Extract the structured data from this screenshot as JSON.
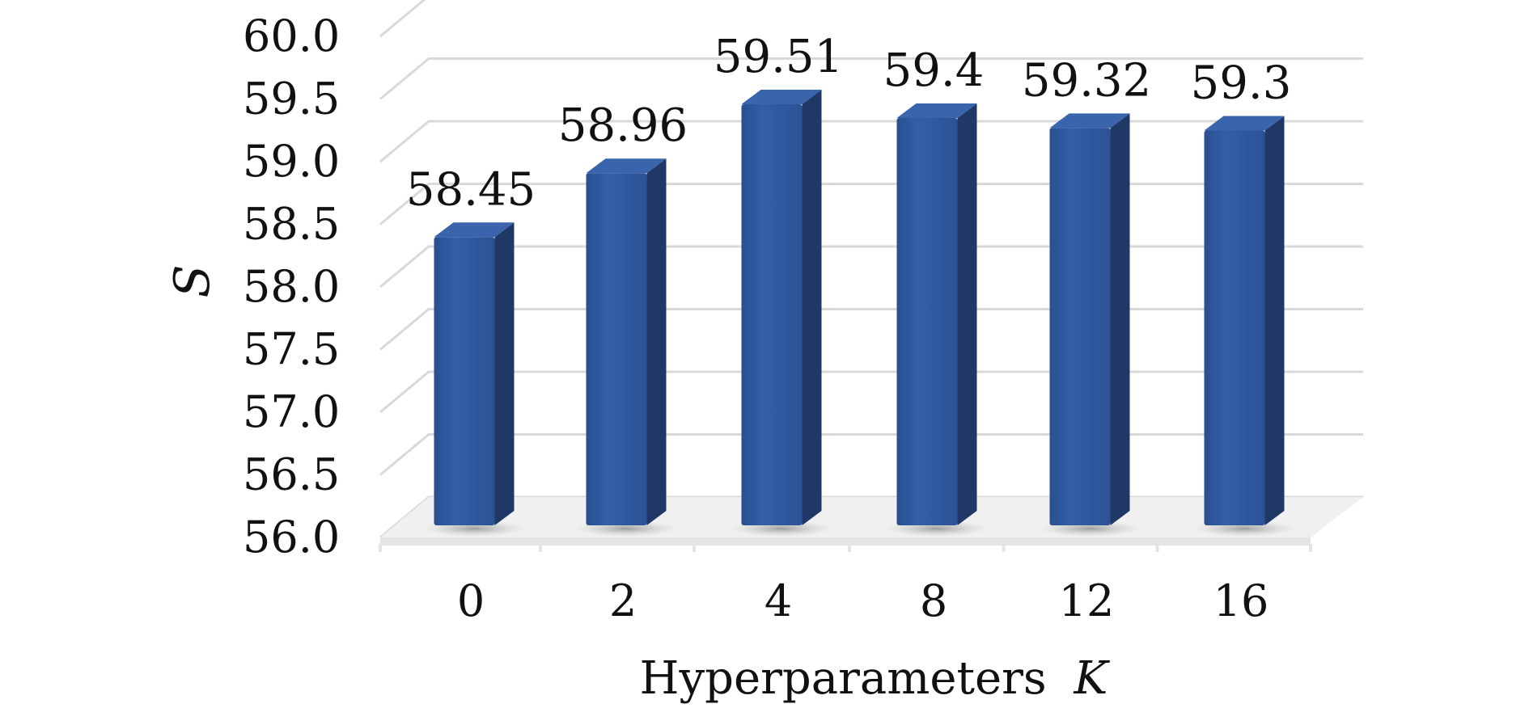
{
  "chart_data": {
    "type": "bar",
    "style": "3d-column",
    "categories": [
      "0",
      "2",
      "4",
      "8",
      "12",
      "16"
    ],
    "values": [
      58.45,
      58.96,
      59.51,
      59.4,
      59.32,
      59.3
    ],
    "value_labels": [
      "58.45",
      "58.96",
      "59.51",
      "59.4",
      "59.32",
      "59.3"
    ],
    "xlabel_text": "Hyperparameters",
    "xlabel_var": "K",
    "ylabel": "S",
    "ylim": [
      56.0,
      60.0
    ],
    "yticks": [
      "56.0",
      "56.5",
      "57.0",
      "57.5",
      "58.0",
      "58.5",
      "59.0",
      "59.5",
      "60.0"
    ],
    "grid": true,
    "colors": {
      "bar_front": "#2e5597",
      "bar_side": "#1f3865",
      "bar_top": "#3a65ad",
      "grid": "#d9d9d9",
      "floor": "#e4e4e4"
    }
  }
}
